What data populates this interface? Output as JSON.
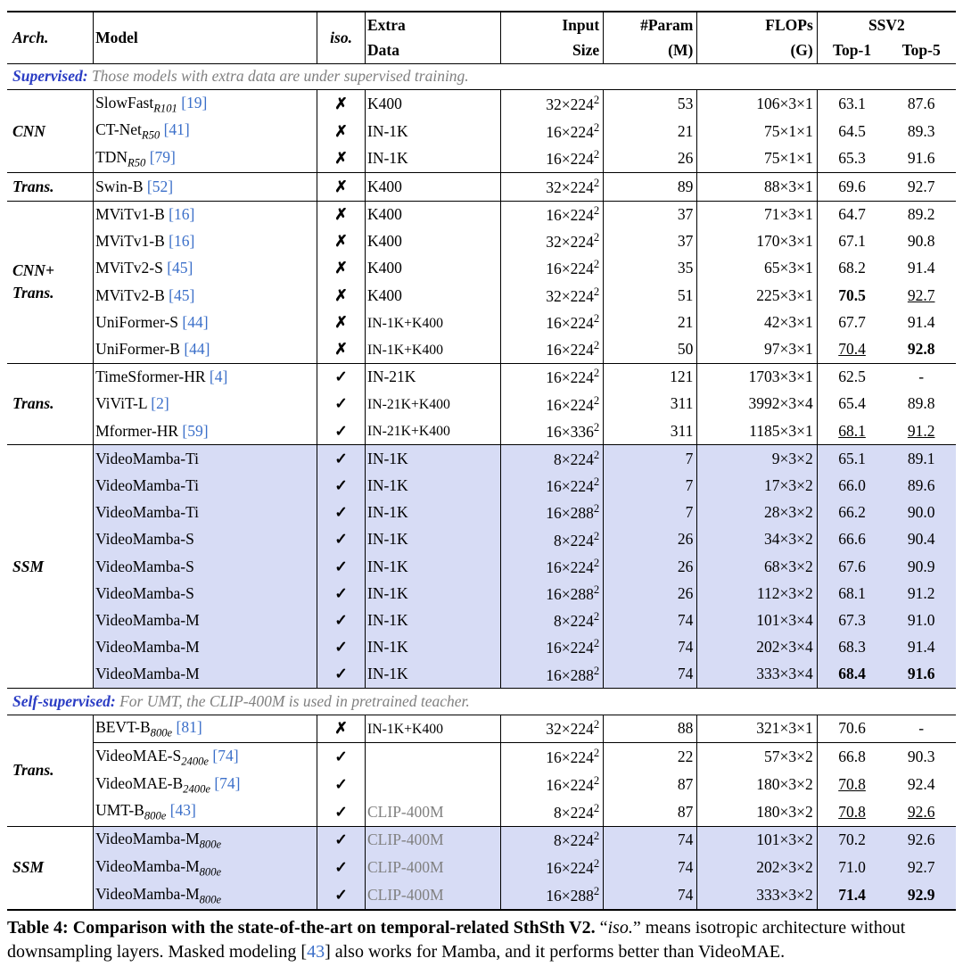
{
  "header": {
    "arch": "Arch.",
    "model": "Model",
    "iso": "iso.",
    "extra1": "Extra",
    "extra2": "Data",
    "input1": "Input",
    "input2": "Size",
    "param1": "#Param",
    "param2": "(M)",
    "flops1": "FLOPs",
    "flops2": "(G)",
    "ssv2": "SSV2",
    "top1": "Top-1",
    "top5": "Top-5"
  },
  "sections": [
    {
      "label_bold": "Supervised:",
      "label_gray": " Those models with extra data are under supervised training.",
      "groups": [
        {
          "arch": "CNN",
          "rows": [
            {
              "model": "SlowFast",
              "msub": "R101",
              "ref": "[19]",
              "iso": "✗",
              "extra": "K400",
              "input_pre": "32×224",
              "input_sup": "2",
              "param": "53",
              "flops": "106×3×1",
              "t1": "63.1",
              "t5": "87.6"
            },
            {
              "model": "CT-Net",
              "msub": "R50",
              "ref": "[41]",
              "iso": "✗",
              "extra": "IN-1K",
              "input_pre": "16×224",
              "input_sup": "2",
              "param": "21",
              "flops": "75×1×1",
              "t1": "64.5",
              "t5": "89.3"
            },
            {
              "model": "TDN",
              "msub": "R50",
              "ref": "[79]",
              "iso": "✗",
              "extra": "IN-1K",
              "input_pre": "16×224",
              "input_sup": "2",
              "param": "26",
              "flops": "75×1×1",
              "t1": "65.3",
              "t5": "91.6"
            }
          ]
        },
        {
          "arch": "Trans.",
          "rows": [
            {
              "model": "Swin-B",
              "ref": "[52]",
              "iso": "✗",
              "extra": "K400",
              "input_pre": "32×224",
              "input_sup": "2",
              "param": "89",
              "flops": "88×3×1",
              "t1": "69.6",
              "t5": "92.7"
            }
          ]
        },
        {
          "arch": "CNN+\nTrans.",
          "rows": [
            {
              "model": "MViTv1-B",
              "ref": "[16]",
              "iso": "✗",
              "extra": "K400",
              "input_pre": "16×224",
              "input_sup": "2",
              "param": "37",
              "flops": "71×3×1",
              "t1": "64.7",
              "t5": "89.2"
            },
            {
              "model": "MViTv1-B",
              "ref": "[16]",
              "iso": "✗",
              "extra": "K400",
              "input_pre": "32×224",
              "input_sup": "2",
              "param": "37",
              "flops": "170×3×1",
              "t1": "67.1",
              "t5": "90.8"
            },
            {
              "model": "MViTv2-S",
              "ref": "[45]",
              "iso": "✗",
              "extra": "K400",
              "input_pre": "16×224",
              "input_sup": "2",
              "param": "35",
              "flops": "65×3×1",
              "t1": "68.2",
              "t5": "91.4"
            },
            {
              "model": "MViTv2-B",
              "ref": "[45]",
              "iso": "✗",
              "extra": "K400",
              "input_pre": "32×224",
              "input_sup": "2",
              "param": "51",
              "flops": "225×3×1",
              "t1": "70.5",
              "t1s": "bold",
              "t5": "92.7",
              "t5s": "ul"
            },
            {
              "model": "UniFormer-S",
              "ref": "[44]",
              "iso": "✗",
              "extra": "IN-1K+K400",
              "extra_small": true,
              "input_pre": "16×224",
              "input_sup": "2",
              "param": "21",
              "flops": "42×3×1",
              "t1": "67.7",
              "t5": "91.4"
            },
            {
              "model": "UniFormer-B",
              "ref": "[44]",
              "iso": "✗",
              "extra": "IN-1K+K400",
              "extra_small": true,
              "input_pre": "16×224",
              "input_sup": "2",
              "param": "50",
              "flops": "97×3×1",
              "t1": "70.4",
              "t1s": "ul",
              "t5": "92.8",
              "t5s": "bold"
            }
          ]
        },
        {
          "arch": "Trans.",
          "rows": [
            {
              "model": "TimeSformer-HR",
              "ref": "[4]",
              "iso": "✓",
              "extra": "IN-21K",
              "input_pre": "16×224",
              "input_sup": "2",
              "param": "121",
              "flops": "1703×3×1",
              "t1": "62.5",
              "t5": "-"
            },
            {
              "model": "ViViT-L",
              "ref": "[2]",
              "iso": "✓",
              "extra": "IN-21K+K400",
              "extra_small": true,
              "input_pre": "16×224",
              "input_sup": "2",
              "param": "311",
              "flops": "3992×3×4",
              "t1": "65.4",
              "t5": "89.8"
            },
            {
              "model": "Mformer-HR",
              "ref": "[59]",
              "iso": "✓",
              "extra": "IN-21K+K400",
              "extra_small": true,
              "input_pre": "16×336",
              "input_sup": "2",
              "param": "311",
              "flops": "1185×3×1",
              "t1": "68.1",
              "t1s": "ul",
              "t5": "91.2",
              "t5s": "ul"
            }
          ]
        },
        {
          "arch": "SSM",
          "hl": true,
          "rows": [
            {
              "model": "VideoMamba-Ti",
              "iso": "✓",
              "extra": "IN-1K",
              "input_pre": "8×224",
              "input_sup": "2",
              "param": "7",
              "flops": "9×3×2",
              "t1": "65.1",
              "t5": "89.1"
            },
            {
              "model": "VideoMamba-Ti",
              "iso": "✓",
              "extra": "IN-1K",
              "input_pre": "16×224",
              "input_sup": "2",
              "param": "7",
              "flops": "17×3×2",
              "t1": "66.0",
              "t5": "89.6"
            },
            {
              "model": "VideoMamba-Ti",
              "iso": "✓",
              "extra": "IN-1K",
              "input_pre": "16×288",
              "input_sup": "2",
              "param": "7",
              "flops": "28×3×2",
              "t1": "66.2",
              "t5": "90.0"
            },
            {
              "model": "VideoMamba-S",
              "iso": "✓",
              "extra": "IN-1K",
              "input_pre": "8×224",
              "input_sup": "2",
              "param": "26",
              "flops": "34×3×2",
              "t1": "66.6",
              "t5": "90.4"
            },
            {
              "model": "VideoMamba-S",
              "iso": "✓",
              "extra": "IN-1K",
              "input_pre": "16×224",
              "input_sup": "2",
              "param": "26",
              "flops": "68×3×2",
              "t1": "67.6",
              "t5": "90.9"
            },
            {
              "model": "VideoMamba-S",
              "iso": "✓",
              "extra": "IN-1K",
              "input_pre": "16×288",
              "input_sup": "2",
              "param": "26",
              "flops": "112×3×2",
              "t1": "68.1",
              "t5": "91.2"
            },
            {
              "model": "VideoMamba-M",
              "iso": "✓",
              "extra": "IN-1K",
              "input_pre": "8×224",
              "input_sup": "2",
              "param": "74",
              "flops": "101×3×4",
              "t1": "67.3",
              "t5": "91.0"
            },
            {
              "model": "VideoMamba-M",
              "iso": "✓",
              "extra": "IN-1K",
              "input_pre": "16×224",
              "input_sup": "2",
              "param": "74",
              "flops": "202×3×4",
              "t1": "68.3",
              "t5": "91.4"
            },
            {
              "model": "VideoMamba-M",
              "iso": "✓",
              "extra": "IN-1K",
              "input_pre": "16×288",
              "input_sup": "2",
              "param": "74",
              "flops": "333×3×4",
              "t1": "68.4",
              "t1s": "bold",
              "t5": "91.6",
              "t5s": "bold"
            }
          ]
        }
      ]
    },
    {
      "label_bold": "Self-supervised:",
      "label_gray": " For UMT, the CLIP-400M is used in pretrained teacher.",
      "groups": [
        {
          "arch": "Trans.",
          "rows": [
            {
              "model": "BEVT-B",
              "msub": "800e",
              "ref": "[81]",
              "iso": "✗",
              "extra": "IN-1K+K400",
              "extra_small": true,
              "input_pre": "32×224",
              "input_sup": "2",
              "param": "88",
              "flops": "321×3×1",
              "t1": "70.6",
              "t5": "-",
              "inner_rule_after": true
            },
            {
              "model": "VideoMAE-S",
              "msub": "2400e",
              "ref": "[74]",
              "iso": "✓",
              "extra": "",
              "input_pre": "16×224",
              "input_sup": "2",
              "param": "22",
              "flops": "57×3×2",
              "t1": "66.8",
              "t5": "90.3"
            },
            {
              "model": "VideoMAE-B",
              "msub": "2400e",
              "ref": "[74]",
              "iso": "✓",
              "extra": "",
              "input_pre": "16×224",
              "input_sup": "2",
              "param": "87",
              "flops": "180×3×2",
              "t1": "70.8",
              "t1s": "ul",
              "t5": "92.4"
            },
            {
              "model": "UMT-B",
              "msub": "800e",
              "ref": "[43]",
              "iso": "✓",
              "extra": "CLIP-400M",
              "extra_gray": true,
              "input_pre": "8×224",
              "input_sup": "2",
              "param": "87",
              "flops": "180×3×2",
              "t1": "70.8",
              "t1s": "ul",
              "t5": "92.6",
              "t5s": "ul"
            }
          ]
        },
        {
          "arch": "SSM",
          "hl": true,
          "rows": [
            {
              "model": "VideoMamba-M",
              "msub": "800e",
              "iso": "✓",
              "extra": "CLIP-400M",
              "extra_gray": true,
              "input_pre": "8×224",
              "input_sup": "2",
              "param": "74",
              "flops": "101×3×2",
              "t1": "70.2",
              "t5": "92.6"
            },
            {
              "model": "VideoMamba-M",
              "msub": "800e",
              "iso": "✓",
              "extra": "CLIP-400M",
              "extra_gray": true,
              "input_pre": "16×224",
              "input_sup": "2",
              "param": "74",
              "flops": "202×3×2",
              "t1": "71.0",
              "t5": "92.7"
            },
            {
              "model": "VideoMamba-M",
              "msub": "800e",
              "iso": "✓",
              "extra": "CLIP-400M",
              "extra_gray": true,
              "input_pre": "16×288",
              "input_sup": "2",
              "param": "74",
              "flops": "333×3×2",
              "t1": "71.4",
              "t1s": "bold",
              "t5": "92.9",
              "t5s": "bold"
            }
          ]
        }
      ]
    }
  ],
  "caption": {
    "title": "Table 4: Comparison with the state-of-the-art on temporal-related SthSth V2.",
    "body1": " “",
    "iso_word": "iso.",
    "body2": "” means isotropic architecture without downsampling layers. Masked modeling [",
    "ref": "43",
    "body3": "] also works for Mamba, and it performs better than VideoMAE."
  }
}
